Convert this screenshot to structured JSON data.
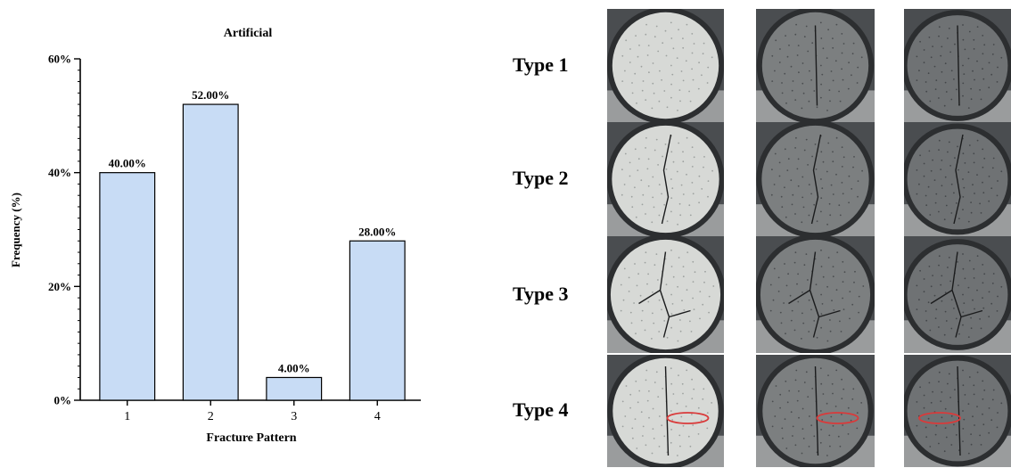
{
  "chart_data": {
    "type": "bar",
    "title": "Artificial",
    "xlabel": "Fracture Pattern",
    "ylabel": "Frequency (%)",
    "categories": [
      "1",
      "2",
      "3",
      "4"
    ],
    "values": [
      40.0,
      52.0,
      4.0,
      28.0
    ],
    "data_labels": [
      "40.00%",
      "52.00%",
      "4.00%",
      "28.00%"
    ],
    "ylim": [
      0,
      60
    ],
    "yticks": [
      0,
      20,
      40,
      60
    ],
    "ytick_labels": [
      "0%",
      "20%",
      "40%",
      "60%"
    ],
    "bar_color": "#c8dcf5",
    "bar_edge_color": "#000000",
    "grid": false,
    "legend": "none"
  },
  "specimens": {
    "rows": [
      {
        "label": "Type 1",
        "crack": "none"
      },
      {
        "label": "Type 2",
        "crack": "single-vertical"
      },
      {
        "label": "Type 3",
        "crack": "branched"
      },
      {
        "label": "Type 4",
        "crack": "edge-chip-circled"
      }
    ],
    "highlight_color": "#d93a3a"
  }
}
